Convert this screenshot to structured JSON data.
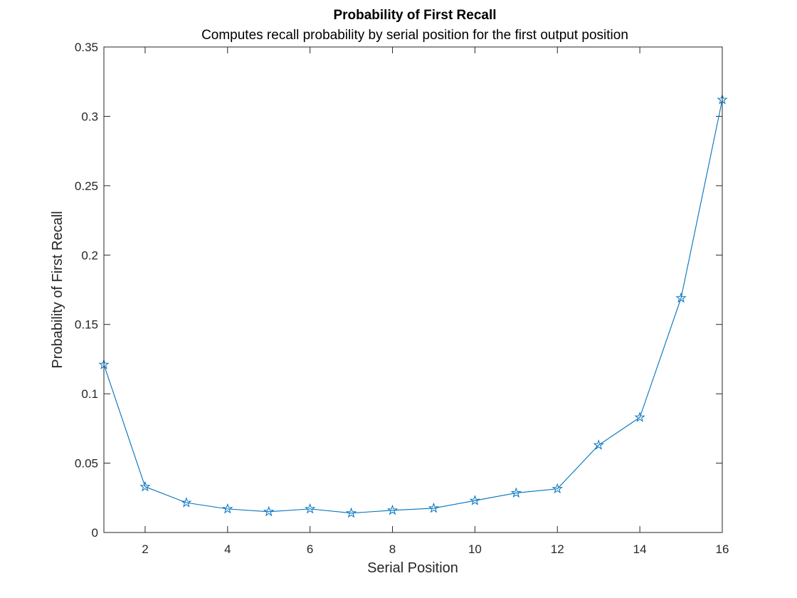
{
  "chart_data": {
    "type": "line",
    "title": "Probability of First Recall",
    "subtitle": "Computes recall probability by serial position for the first output position",
    "xlabel": "Serial Position",
    "ylabel": "Probability of First Recall",
    "xlim": [
      1,
      16
    ],
    "ylim": [
      0,
      0.35
    ],
    "x_ticks": [
      2,
      4,
      6,
      8,
      10,
      12,
      14,
      16
    ],
    "y_ticks": [
      0,
      0.05,
      0.1,
      0.15,
      0.2,
      0.25,
      0.3,
      0.35
    ],
    "x_tick_labels": [
      "2",
      "4",
      "6",
      "8",
      "10",
      "12",
      "14",
      "16"
    ],
    "y_tick_labels": [
      "0",
      "0.05",
      "0.1",
      "0.15",
      "0.2",
      "0.25",
      "0.3",
      "0.35"
    ],
    "grid": false,
    "marker": "pentagram",
    "line_color": "#0072BD",
    "series": [
      {
        "x": [
          1,
          2,
          3,
          4,
          5,
          6,
          7,
          8,
          9,
          10,
          11,
          12,
          13,
          14,
          15,
          16
        ],
        "values": [
          0.121,
          0.033,
          0.0215,
          0.017,
          0.015,
          0.017,
          0.014,
          0.016,
          0.0175,
          0.023,
          0.0285,
          0.0315,
          0.063,
          0.083,
          0.169,
          0.312
        ]
      }
    ]
  }
}
